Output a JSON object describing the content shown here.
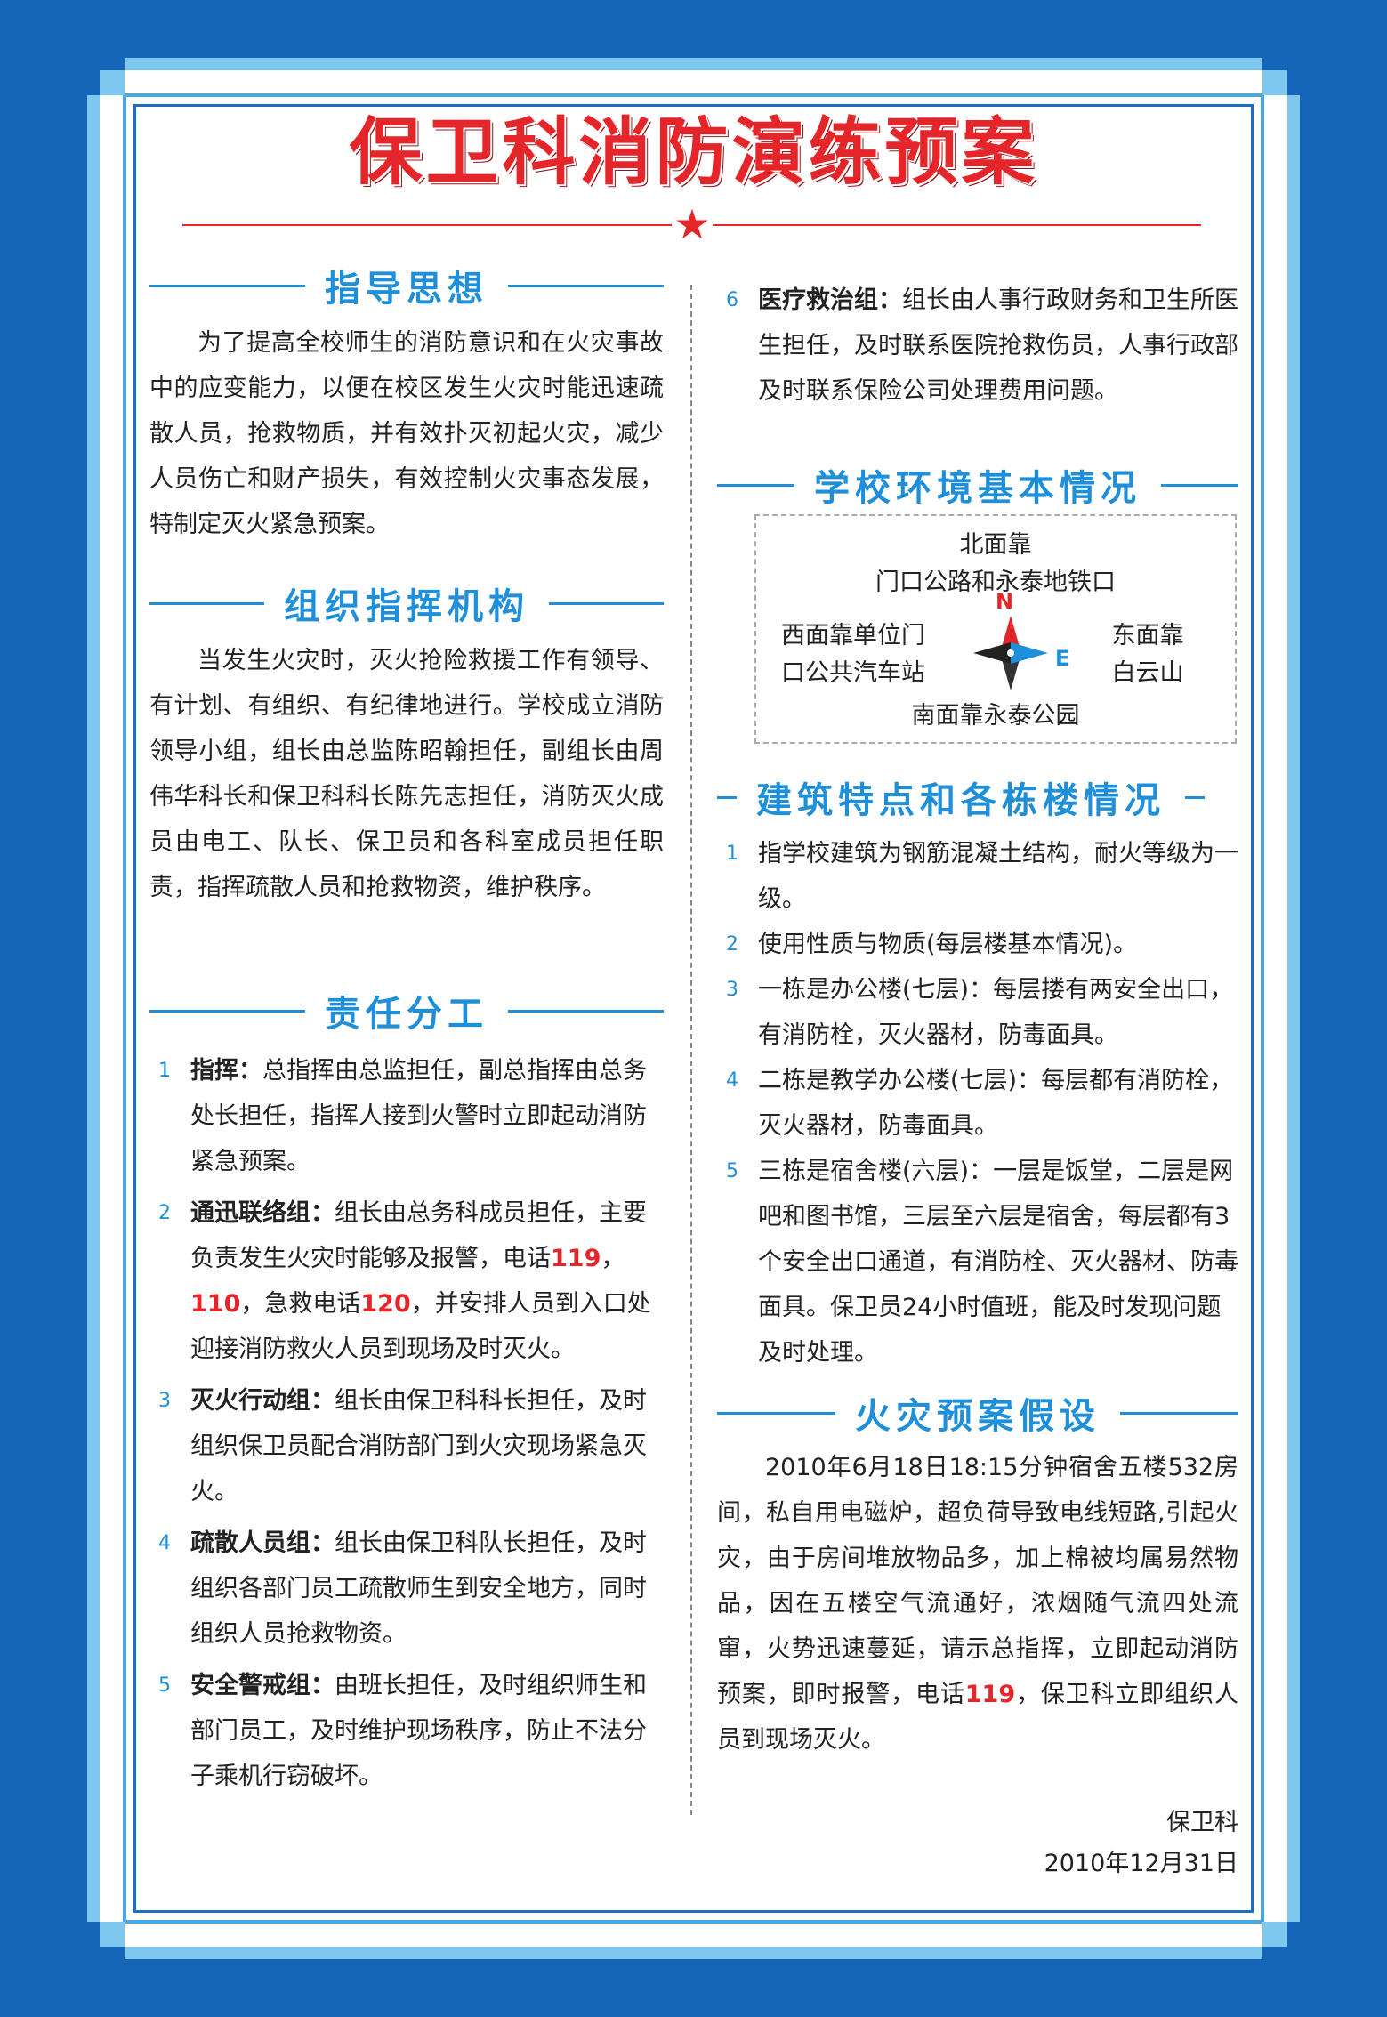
{
  "title": "保卫科消防演练预案",
  "sections": {
    "guiding": {
      "heading": "指导思想",
      "text": "为了提高全校师生的消防意识和在火灾事故中的应变能力，以便在校区发生火灾时能迅速疏散人员，抢救物质，并有效扑灭初起火灾，减少人员伤亡和财产损失，有效控制火灾事态发展，特制定灭火紧急预案。"
    },
    "organization": {
      "heading": "组织指挥机构",
      "text": "当发生火灾时，灭火抢险救援工作有领导、有计划、有组织、有纪律地进行。学校成立消防领导小组，组长由总监陈昭翰担任，副组长由周伟华科长和保卫科科长陈先志担任，消防灭火成员由电工、队长、保卫员和各科室成员担任职责，指挥疏散人员和抢救物资，维护秩序。"
    },
    "duties": {
      "heading": "责任分工",
      "items": [
        {
          "num": "1",
          "label": "指挥：",
          "text": "总指挥由总监担任，副总指挥由总务处长担任，指挥人接到火警时立即起动消防紧急预案。"
        },
        {
          "num": "2",
          "label": "通迅联络组：",
          "text_a": "组长由总务科成员担任，主要负责发生火灾时能够及报警，电话",
          "phone1": "119",
          "sep1": "，",
          "phone2": "110",
          "text_b": "，急救电话",
          "phone3": "120",
          "text_c": "，并安排人员到入口处迎接消防救火人员到现场及时灭火。"
        },
        {
          "num": "3",
          "label": "灭火行动组：",
          "text": "组长由保卫科科长担任，及时组织保卫员配合消防部门到火灾现场紧急灭火。"
        },
        {
          "num": "4",
          "label": "疏散人员组：",
          "text": "组长由保卫科队长担任，及时组织各部门员工疏散师生到安全地方，同时组织人员抢救物资。"
        },
        {
          "num": "5",
          "label": "安全警戒组：",
          "text": "由班长担任，及时组织师生和部门员工，及时维护现场秩序，防止不法分子乘机行窃破坏。"
        },
        {
          "num": "6",
          "label": "医疗救治组：",
          "text": "组长由人事行政财务和卫生所医生担任，及时联系医院抢救伤员，人事行政部及时联系保险公司处理费用问题。"
        }
      ]
    },
    "environment": {
      "heading": "学校环境基本情况",
      "north": "北面靠",
      "north2": "门口公路和永泰地铁口",
      "west": "西面靠单位门",
      "west2": "口公共汽车站",
      "east": "东面靠",
      "east2": "白云山",
      "south": "南面靠永泰公园",
      "n_letter": "N",
      "e_letter": "E"
    },
    "buildings": {
      "heading": "建筑特点和各栋楼情况",
      "items": [
        {
          "num": "1",
          "text": "指学校建筑为钢筋混凝土结构，耐火等级为一级。"
        },
        {
          "num": "2",
          "text": "使用性质与物质(每层楼基本情况)。"
        },
        {
          "num": "3",
          "text": "一栋是办公楼(七层)：每层搂有两安全出口，有消防栓，灭火器材，防毒面具。"
        },
        {
          "num": "4",
          "text": "二栋是教学办公楼(七层)：每层都有消防栓，灭火器材，防毒面具。"
        },
        {
          "num": "5",
          "text": "三栋是宿舍楼(六层)：一层是饭堂，二层是网吧和图书馆，三层至六层是宿舍，每层都有3个安全出口通道，有消防栓、灭火器材、防毒面具。保卫员24小时值班，能及时发现问题及时处理。"
        }
      ]
    },
    "scenario": {
      "heading": "火灾预案假设",
      "text_a": "2010年6月18日18:15分钟宿舍五楼532房间，私自用电磁炉，超负荷导致电线短路,引起火灾，由于房间堆放物品多，加上棉被均属易然物品，因在五楼空气流通好，浓烟随气流四处流窜，火势迅速蔓延，请示总指挥，立即起动消防预案，即时报警，电话",
      "phone": "119",
      "text_b": "，保卫科立即组织人员到现场灭火。"
    }
  },
  "signature": {
    "dept": "保卫科",
    "date": "2010年12月31日"
  },
  "colors": {
    "background": "#1565b8",
    "title": "#e4262b",
    "heading": "#1e8fd8",
    "frame_light": "#7ec8f0"
  }
}
